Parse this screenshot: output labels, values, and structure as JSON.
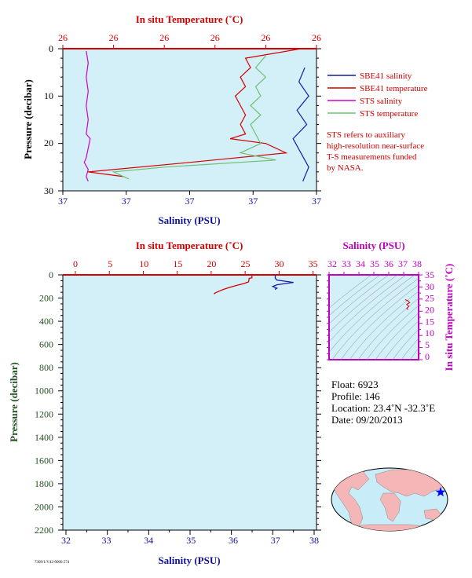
{
  "chart_data": [
    {
      "id": "top",
      "type": "line",
      "top_axis_label": "In situ Temperature (˚C)",
      "top_tick_labels": [
        "26",
        "26",
        "26",
        "26",
        "26",
        "26"
      ],
      "bottom_axis_label": "Salinity (PSU)",
      "bottom_tick_labels": [
        "37",
        "37",
        "37",
        "37",
        "37"
      ],
      "ylabel": "Pressure (decibar)",
      "y_tick_labels": [
        "0",
        "10",
        "20",
        "30"
      ],
      "ylim": [
        0,
        30
      ],
      "y_inverted": true,
      "salinity_lim": [
        36.94,
        37.07
      ],
      "temperature_lim": [
        25.95,
        26.0
      ],
      "legend": [
        {
          "label": "SBE41 salinity",
          "color": "#1a1aa8"
        },
        {
          "label": "SBE41 temperature",
          "color": "#d40000"
        },
        {
          "label": "STS salinity",
          "color": "#d000d0"
        },
        {
          "label": "STS temperature",
          "color": "#70c070"
        }
      ],
      "note_lines": [
        "STS refers to auxiliary",
        "high-resolution near-surface",
        "T-S measurements funded",
        "by NASA."
      ],
      "series": [
        {
          "name": "SBE41 salinity",
          "axis": "salinity",
          "color": "#1a1aa8",
          "points": [
            [
              37.064,
              4
            ],
            [
              37.061,
              7
            ],
            [
              37.066,
              10
            ],
            [
              37.06,
              13
            ],
            [
              37.065,
              16
            ],
            [
              37.058,
              19
            ],
            [
              37.062,
              22
            ],
            [
              37.066,
              25
            ],
            [
              37.063,
              28
            ]
          ]
        },
        {
          "name": "SBE41 temperature",
          "axis": "temperature",
          "color": "#d40000",
          "points": [
            [
              25.997,
              0
            ],
            [
              25.986,
              2
            ],
            [
              25.987,
              4
            ],
            [
              25.985,
              6
            ],
            [
              25.986,
              8
            ],
            [
              25.984,
              10
            ],
            [
              25.985,
              12
            ],
            [
              25.986,
              14
            ],
            [
              25.985,
              16
            ],
            [
              25.986,
              18
            ],
            [
              25.983,
              19
            ],
            [
              25.99,
              20
            ],
            [
              25.994,
              22
            ],
            [
              25.975,
              24
            ],
            [
              25.955,
              26
            ],
            [
              25.962,
              27
            ]
          ]
        },
        {
          "name": "STS salinity",
          "axis": "salinity",
          "color": "#d000d0",
          "points": [
            [
              36.952,
              0.5
            ],
            [
              36.953,
              3
            ],
            [
              36.952,
              6
            ],
            [
              36.953,
              9
            ],
            [
              36.952,
              12
            ],
            [
              36.953,
              15
            ],
            [
              36.952,
              18
            ],
            [
              36.954,
              19
            ],
            [
              36.953,
              21
            ],
            [
              36.952,
              23
            ],
            [
              36.951,
              24
            ],
            [
              36.953,
              25.5
            ],
            [
              36.952,
              27
            ],
            [
              36.953,
              28
            ]
          ]
        },
        {
          "name": "STS temperature",
          "axis": "temperature",
          "color": "#70c070",
          "points": [
            [
              25.99,
              1.5
            ],
            [
              25.988,
              4
            ],
            [
              25.99,
              6
            ],
            [
              25.988,
              8
            ],
            [
              25.989,
              10
            ],
            [
              25.987,
              12
            ],
            [
              25.989,
              14
            ],
            [
              25.987,
              16
            ],
            [
              25.988,
              18
            ],
            [
              25.989,
              20
            ],
            [
              25.985,
              22
            ],
            [
              25.992,
              23.5
            ],
            [
              25.97,
              25
            ],
            [
              25.96,
              26
            ],
            [
              25.963,
              27.5
            ]
          ]
        }
      ]
    },
    {
      "id": "main",
      "type": "line",
      "top_axis_label": "In situ Temperature (˚C)",
      "top_tick_labels": [
        "0",
        "5",
        "10",
        "15",
        "20",
        "25",
        "30",
        "35"
      ],
      "temperature_lim": [
        0,
        35
      ],
      "bottom_axis_label": "Salinity (PSU)",
      "bottom_tick_labels": [
        "32",
        "33",
        "34",
        "35",
        "36",
        "37",
        "38"
      ],
      "salinity_lim": [
        32,
        38
      ],
      "ylabel": "Pressure (decibar)",
      "y_tick_labels": [
        "0",
        "200",
        "400",
        "600",
        "800",
        "1000",
        "1200",
        "1400",
        "1600",
        "1800",
        "2000",
        "2200"
      ],
      "ylim": [
        0,
        2200
      ],
      "y_inverted": true,
      "series": [
        {
          "name": "Temperature",
          "axis": "temperature",
          "color": "#d40000",
          "points": [
            [
              26.0,
              0
            ],
            [
              26.0,
              25
            ],
            [
              25.6,
              30
            ],
            [
              25.5,
              60
            ],
            [
              24.8,
              75
            ],
            [
              23.8,
              90
            ],
            [
              23.2,
              100
            ],
            [
              22.6,
              110
            ],
            [
              21.8,
              125
            ],
            [
              21.2,
              140
            ],
            [
              20.6,
              155
            ],
            [
              20.4,
              165
            ]
          ]
        },
        {
          "name": "Salinity",
          "axis": "salinity",
          "color": "#1a1aa8",
          "points": [
            [
              37.06,
              0
            ],
            [
              37.06,
              30
            ],
            [
              37.1,
              45
            ],
            [
              37.3,
              55
            ],
            [
              37.5,
              65
            ],
            [
              37.3,
              75
            ],
            [
              37.1,
              85
            ],
            [
              37.0,
              100
            ],
            [
              37.1,
              115
            ],
            [
              37.05,
              125
            ]
          ]
        }
      ]
    },
    {
      "id": "ts",
      "type": "scatter",
      "top_axis_label": "Salinity (PSU)",
      "top_tick_labels": [
        "32",
        "33",
        "34",
        "35",
        "36",
        "37",
        "38"
      ],
      "xlim": [
        32,
        38
      ],
      "right_axis_label": "In situ Temperature (˚C)",
      "right_tick_labels": [
        "35",
        "30",
        "25",
        "20",
        "15",
        "10",
        "5",
        "0"
      ],
      "ylim": [
        0,
        35
      ],
      "points": [
        [
          37.1,
          24.8
        ],
        [
          37.3,
          24.2
        ],
        [
          37.4,
          23.5
        ],
        [
          37.2,
          22.8
        ],
        [
          37.35,
          22.0
        ],
        [
          37.2,
          21.2
        ],
        [
          37.3,
          20.6
        ]
      ]
    }
  ],
  "info": {
    "float": "Float:  6923",
    "profile": "Profile:  146",
    "location": "Location:  23.4˚N  -32.3˚E",
    "date": "Date:  09/20/2013"
  },
  "footer_code": "7309/1/V42-0000.574"
}
